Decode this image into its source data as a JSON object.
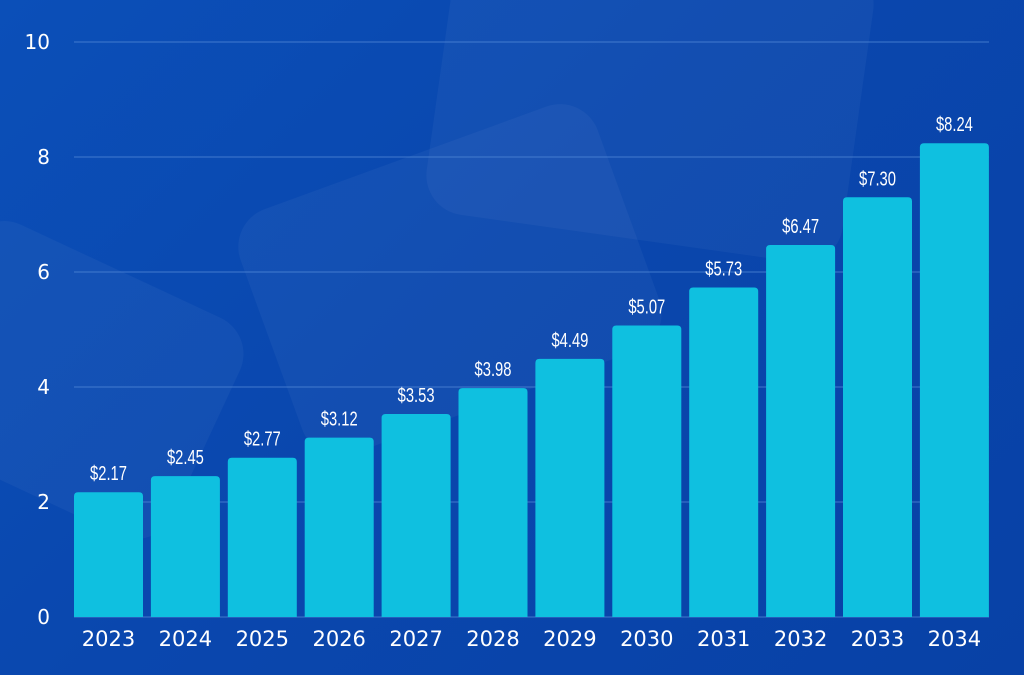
{
  "chart_data": {
    "type": "bar",
    "categories": [
      "2023",
      "2024",
      "2025",
      "2026",
      "2027",
      "2028",
      "2029",
      "2030",
      "2031",
      "2032",
      "2033",
      "2034"
    ],
    "values": [
      2.17,
      2.45,
      2.77,
      3.12,
      3.53,
      3.98,
      4.49,
      5.07,
      5.73,
      6.47,
      7.3,
      8.24
    ],
    "data_labels": [
      "$2.17",
      "$2.45",
      "$2.77",
      "$3.12",
      "$3.53",
      "$3.98",
      "$4.49",
      "$5.07",
      "$5.73",
      "$6.47",
      "$7.30",
      "$8.24"
    ],
    "yticks": [
      "0",
      "2",
      "4",
      "6",
      "8",
      "10"
    ],
    "ylim": [
      0,
      10
    ],
    "grid": true,
    "title": "",
    "xlabel": "",
    "ylabel": "",
    "colors": {
      "bar": "#0fc0e0",
      "background": "#0a47ae",
      "grid": "#4f86d6",
      "text": "#ffffff"
    }
  }
}
